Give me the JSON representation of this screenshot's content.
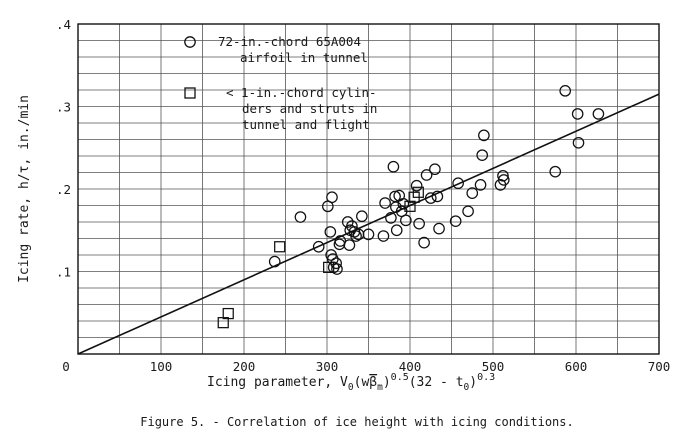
{
  "chart_data": {
    "type": "scatter",
    "caption": "Figure 5. - Correlation of ice height with icing conditions.",
    "xlabel": {
      "main": "Icing parameter, V",
      "sub0": "0",
      "paren_open": "(w",
      "beta": "β",
      "sub_m": "m",
      "paren_close": ")",
      "exp1": "0.5",
      "middle": "(32 - t",
      "sub0b": "0",
      "close2": ")",
      "exp2": "0.3"
    },
    "ylabel": "Icing rate, h/τ, in./min",
    "xlim": [
      0,
      700
    ],
    "ylim": [
      0,
      0.4
    ],
    "x_ticks": [
      "0",
      "100",
      "200",
      "300",
      "400",
      "500",
      "600",
      "700"
    ],
    "y_ticks": [
      ".1",
      ".2",
      ".3",
      ".4"
    ],
    "grid": true,
    "legend": [
      {
        "marker": "circle",
        "lines": [
          "72-in.-chord 65A004",
          "airfoil in tunnel"
        ]
      },
      {
        "marker": "square",
        "lines": [
          "< 1-in.-chord cylin-",
          "ders and struts in",
          "tunnel and flight"
        ]
      }
    ],
    "fit_line": {
      "x": [
        0,
        700
      ],
      "y": [
        0,
        0.315
      ]
    },
    "series": [
      {
        "marker": "circle",
        "points": [
          [
            237,
            0.112
          ],
          [
            268,
            0.166
          ],
          [
            290,
            0.13
          ],
          [
            301,
            0.179
          ],
          [
            304,
            0.148
          ],
          [
            305,
            0.12
          ],
          [
            306,
            0.19
          ],
          [
            307,
            0.115
          ],
          [
            308,
            0.105
          ],
          [
            311,
            0.11
          ],
          [
            312,
            0.103
          ],
          [
            315,
            0.133
          ],
          [
            316,
            0.137
          ],
          [
            325,
            0.16
          ],
          [
            327,
            0.132
          ],
          [
            328,
            0.15
          ],
          [
            330,
            0.155
          ],
          [
            333,
            0.148
          ],
          [
            335,
            0.143
          ],
          [
            338,
            0.145
          ],
          [
            342,
            0.167
          ],
          [
            350,
            0.145
          ],
          [
            368,
            0.143
          ],
          [
            370,
            0.183
          ],
          [
            377,
            0.165
          ],
          [
            380,
            0.227
          ],
          [
            382,
            0.191
          ],
          [
            383,
            0.178
          ],
          [
            384,
            0.15
          ],
          [
            387,
            0.192
          ],
          [
            390,
            0.173
          ],
          [
            392,
            0.182
          ],
          [
            395,
            0.162
          ],
          [
            408,
            0.204
          ],
          [
            411,
            0.158
          ],
          [
            417,
            0.135
          ],
          [
            420,
            0.217
          ],
          [
            425,
            0.189
          ],
          [
            430,
            0.224
          ],
          [
            433,
            0.191
          ],
          [
            435,
            0.152
          ],
          [
            455,
            0.161
          ],
          [
            458,
            0.207
          ],
          [
            470,
            0.173
          ],
          [
            475,
            0.195
          ],
          [
            485,
            0.205
          ],
          [
            487,
            0.241
          ],
          [
            489,
            0.265
          ],
          [
            509,
            0.205
          ],
          [
            512,
            0.216
          ],
          [
            513,
            0.211
          ],
          [
            575,
            0.221
          ],
          [
            587,
            0.319
          ],
          [
            602,
            0.291
          ],
          [
            603,
            0.256
          ],
          [
            627,
            0.291
          ]
        ]
      },
      {
        "marker": "square",
        "points": [
          [
            175,
            0.038
          ],
          [
            181,
            0.049
          ],
          [
            243,
            0.13
          ],
          [
            302,
            0.105
          ],
          [
            400,
            0.179
          ],
          [
            405,
            0.19
          ],
          [
            410,
            0.196
          ]
        ]
      }
    ]
  }
}
